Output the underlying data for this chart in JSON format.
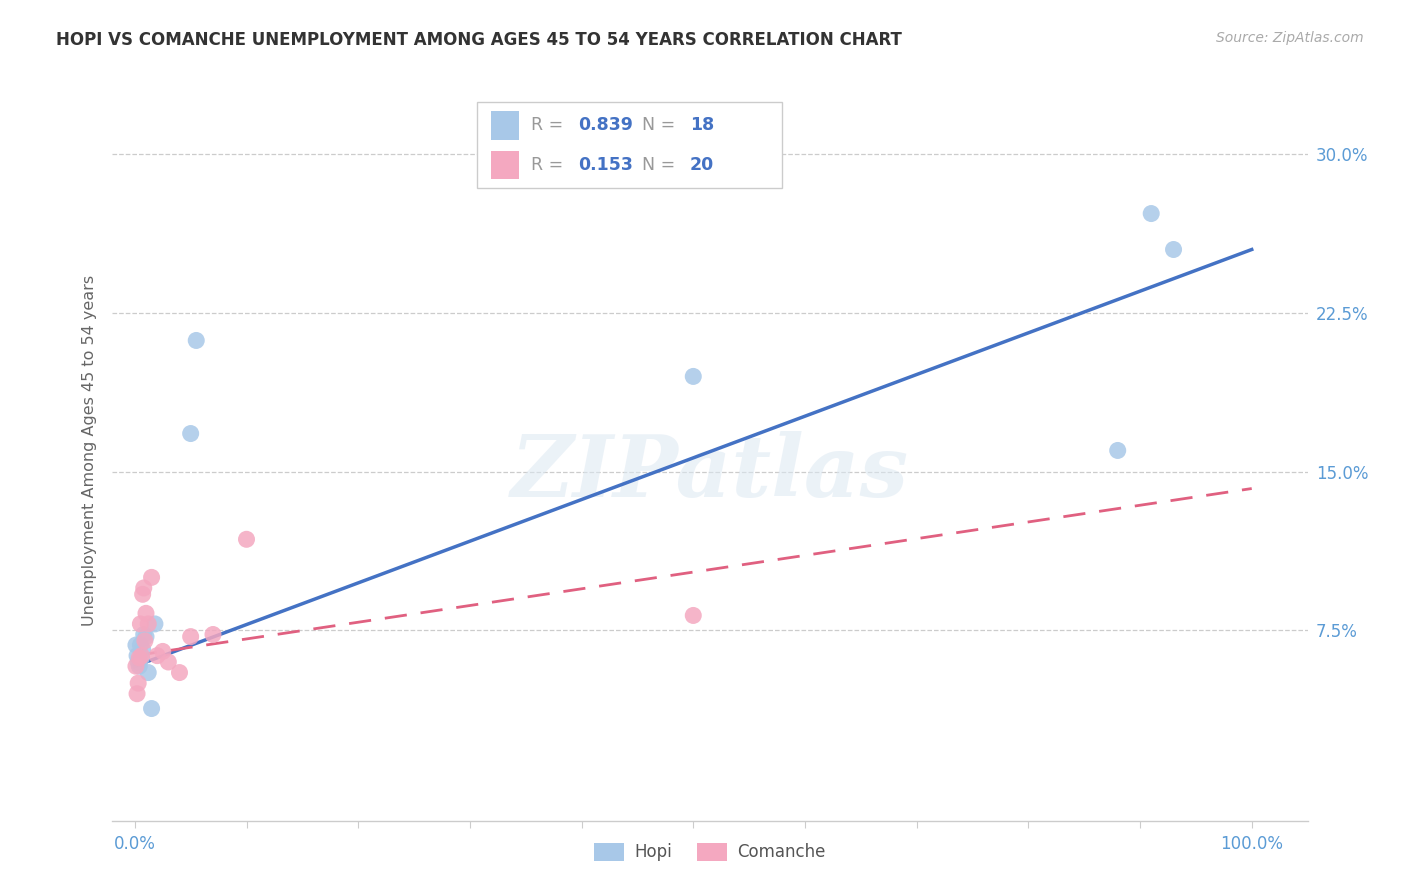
{
  "title": "HOPI VS COMANCHE UNEMPLOYMENT AMONG AGES 45 TO 54 YEARS CORRELATION CHART",
  "source": "Source: ZipAtlas.com",
  "ylabel": "Unemployment Among Ages 45 to 54 years",
  "xlim": [
    -0.02,
    1.05
  ],
  "ylim": [
    -0.015,
    0.335
  ],
  "xticks": [
    0.0,
    0.1,
    0.2,
    0.3,
    0.4,
    0.5,
    0.6,
    0.7,
    0.8,
    0.9,
    1.0
  ],
  "xticklabels": [
    "0.0%",
    "",
    "",
    "",
    "",
    "",
    "",
    "",
    "",
    "",
    "100.0%"
  ],
  "yticks": [
    0.075,
    0.15,
    0.225,
    0.3
  ],
  "yticklabels": [
    "7.5%",
    "15.0%",
    "22.5%",
    "30.0%"
  ],
  "hopi_R": 0.839,
  "hopi_N": 18,
  "comanche_R": 0.153,
  "comanche_N": 20,
  "hopi_scatter_color": "#a8c8e8",
  "hopi_line_color": "#4472c4",
  "comanche_scatter_color": "#f4a8c0",
  "comanche_line_color": "#e06080",
  "tick_color": "#5b9bd5",
  "grid_color": "#cccccc",
  "bg_color": "#ffffff",
  "hopi_x": [
    0.001,
    0.002,
    0.003,
    0.004,
    0.005,
    0.006,
    0.007,
    0.008,
    0.01,
    0.012,
    0.015,
    0.018,
    0.05,
    0.055,
    0.5,
    0.88,
    0.91,
    0.93
  ],
  "hopi_y": [
    0.068,
    0.063,
    0.06,
    0.058,
    0.068,
    0.062,
    0.066,
    0.073,
    0.072,
    0.055,
    0.038,
    0.078,
    0.168,
    0.212,
    0.195,
    0.16,
    0.272,
    0.255
  ],
  "comanche_x": [
    0.001,
    0.002,
    0.003,
    0.004,
    0.005,
    0.006,
    0.007,
    0.008,
    0.009,
    0.01,
    0.012,
    0.015,
    0.02,
    0.025,
    0.03,
    0.04,
    0.05,
    0.07,
    0.1,
    0.5
  ],
  "comanche_y": [
    0.058,
    0.045,
    0.05,
    0.062,
    0.078,
    0.063,
    0.092,
    0.095,
    0.07,
    0.083,
    0.078,
    0.1,
    0.063,
    0.065,
    0.06,
    0.055,
    0.072,
    0.073,
    0.118,
    0.082
  ],
  "watermark": "ZIPatlas",
  "hopi_line_start_x": 0.0,
  "hopi_line_start_y": 0.058,
  "hopi_line_end_x": 1.0,
  "hopi_line_end_y": 0.255,
  "comanche_line_start_x": 0.0,
  "comanche_line_start_y": 0.063,
  "comanche_line_end_x": 1.0,
  "comanche_line_end_y": 0.142
}
